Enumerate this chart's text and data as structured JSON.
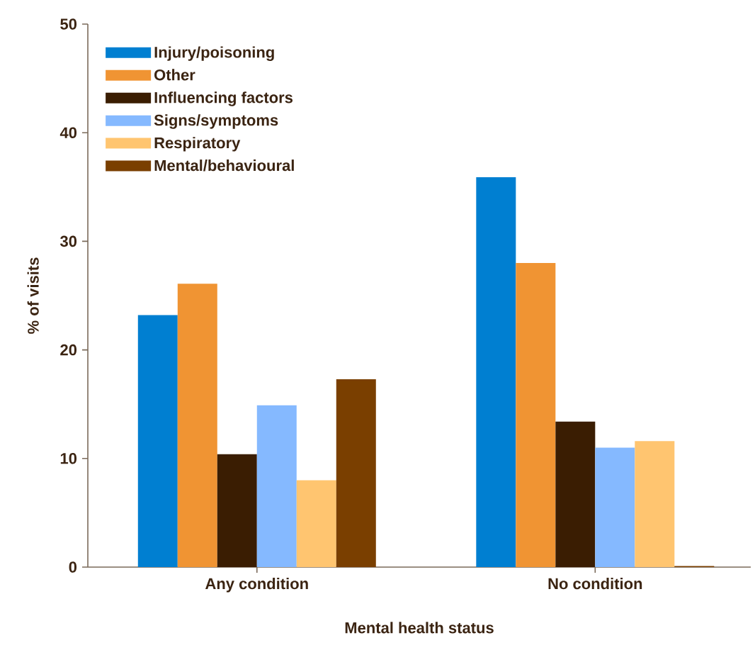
{
  "chart_data": {
    "type": "bar",
    "xlabel": "Mental health status",
    "ylabel": "% of visits",
    "categories": [
      "Any condition",
      "No condition"
    ],
    "series": [
      {
        "name": "Injury/poisoning",
        "color": "#007fd1",
        "values": [
          23.2,
          35.9
        ]
      },
      {
        "name": "Other",
        "color": "#f09433",
        "values": [
          26.1,
          28.0
        ]
      },
      {
        "name": "Influencing factors",
        "color": "#3a1d02",
        "values": [
          10.4,
          13.4
        ]
      },
      {
        "name": "Signs/symptoms",
        "color": "#85b9ff",
        "values": [
          14.9,
          11.0
        ]
      },
      {
        "name": "Respiratory",
        "color": "#ffc570",
        "values": [
          8.0,
          11.6
        ]
      },
      {
        "name": "Mental/behavioural",
        "color": "#7a3f00",
        "values": [
          17.3,
          0.1
        ]
      }
    ],
    "ylim": [
      0,
      50
    ],
    "yticks": [
      0,
      10,
      20,
      30,
      40,
      50
    ],
    "grid": false,
    "legend": "top left"
  }
}
